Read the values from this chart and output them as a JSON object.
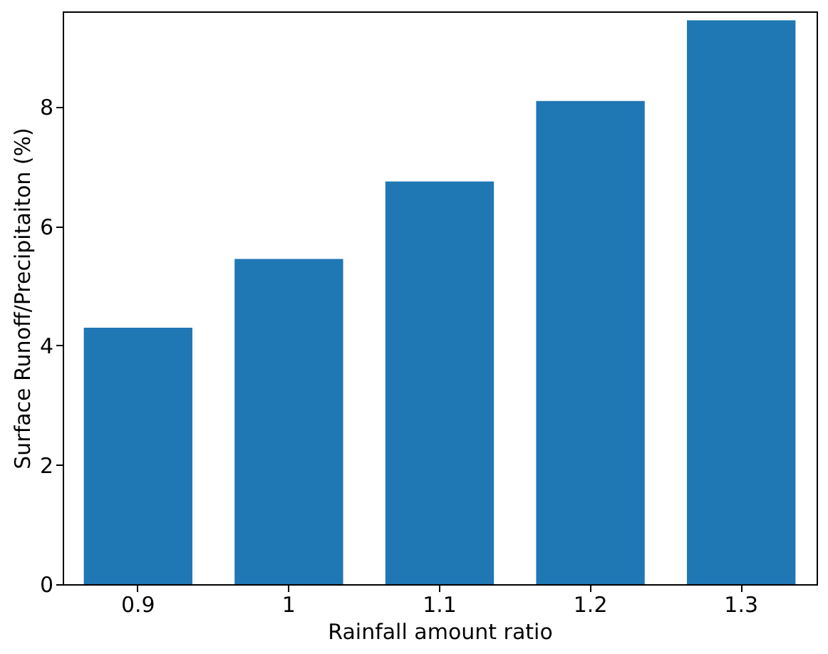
{
  "chart_data": {
    "type": "bar",
    "xlabel": "Rainfall amount ratio",
    "ylabel": "Surface Runoff/Precipitaiton (%)",
    "categories": [
      "0.9",
      "1",
      "1.1",
      "1.2",
      "1.3"
    ],
    "values": [
      4.3,
      5.45,
      6.75,
      8.1,
      9.45
    ],
    "color": "#1f77b4",
    "ylim": [
      0,
      9.6
    ],
    "yticks": [
      0,
      2,
      4,
      6,
      8
    ],
    "grid": false
  }
}
